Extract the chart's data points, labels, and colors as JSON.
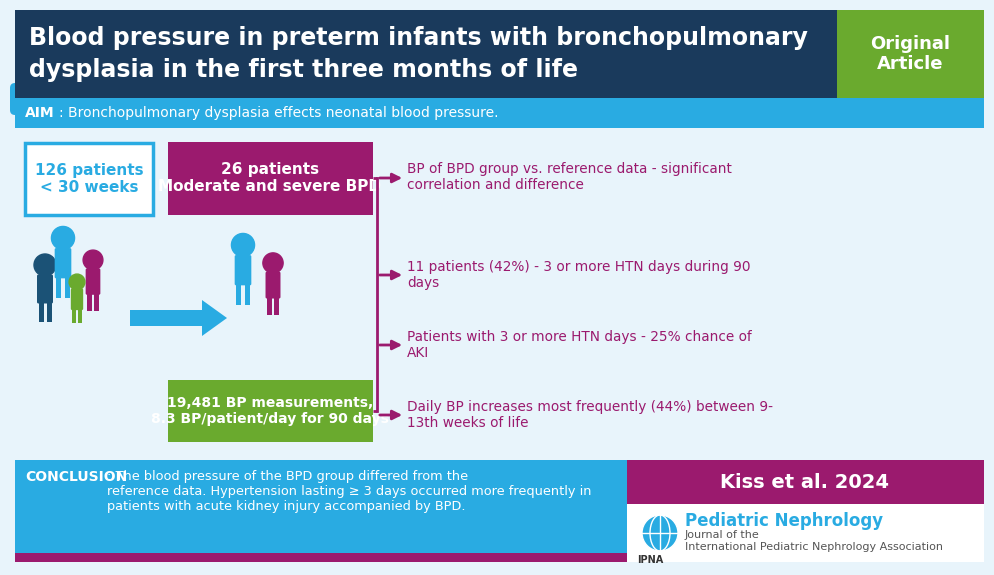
{
  "title_line1": "Blood pressure in preterm infants with bronchopulmonary",
  "title_line2": "dysplasia in the first three months of life",
  "title_bg_color": "#1a3a5c",
  "title_text_color": "#ffffff",
  "badge_text": "Original\nArticle",
  "badge_bg_color": "#6aaa2e",
  "aim_bg_color": "#29abe2",
  "aim_text_bold": "AIM",
  "aim_text_rest": ": Bronchopulmonary dysplasia effects neonatal blood pressure.",
  "aim_text_color": "#ffffff",
  "main_bg_color": "#e8f4fb",
  "box1_text": "126 patients\n< 30 weeks",
  "box1_bg": "#ffffff",
  "box1_border": "#29abe2",
  "box2_text": "26 patients\nModerate and severe BPD",
  "box2_bg": "#9b1a6e",
  "box2_text_color": "#ffffff",
  "box3_text": "19,481 BP measurements,\n8.3 BP/patient/day for 90 days",
  "box3_bg": "#6aaa2e",
  "box3_text_color": "#ffffff",
  "finding1": "BP of BPD group vs. reference data - significant\ncorrelation and difference",
  "finding2": "11 patients (42%) - 3 or more HTN days during 90\ndays",
  "finding3": "Patients with 3 or more HTN days - 25% chance of\nAKI",
  "finding4": "Daily BP increases most frequently (44%) between 9-\n13th weeks of life",
  "findings_color": "#9b1a6e",
  "arrow_color": "#9b1a6e",
  "connector_arrow_color": "#29abe2",
  "conclusion_bg": "#29abe2",
  "conclusion_label": "CONCLUSION",
  "conclusion_text": ": The blood pressure of the BPD group differed from the\nreference data. Hypertension lasting ≥ 3 days occurred more frequently in\npatients with acute kidney injury accompanied by BPD.",
  "conclusion_text_color": "#ffffff",
  "kiss_bg": "#9b1a6e",
  "kiss_text": "Kiss et al. 2024",
  "kiss_text_color": "#ffffff",
  "journal_text1": "Pediatric Nephrology",
  "journal_text2": "Journal of the\nInternational Pediatric Nephrology Association",
  "journal_bg": "#ffffff",
  "bottom_bar_color": "#9b1a6e",
  "figure_colors": {
    "blue_dark": "#1b5276",
    "pink": "#9b1a6e",
    "green": "#6aaa2e",
    "blue_light": "#29abe2"
  }
}
